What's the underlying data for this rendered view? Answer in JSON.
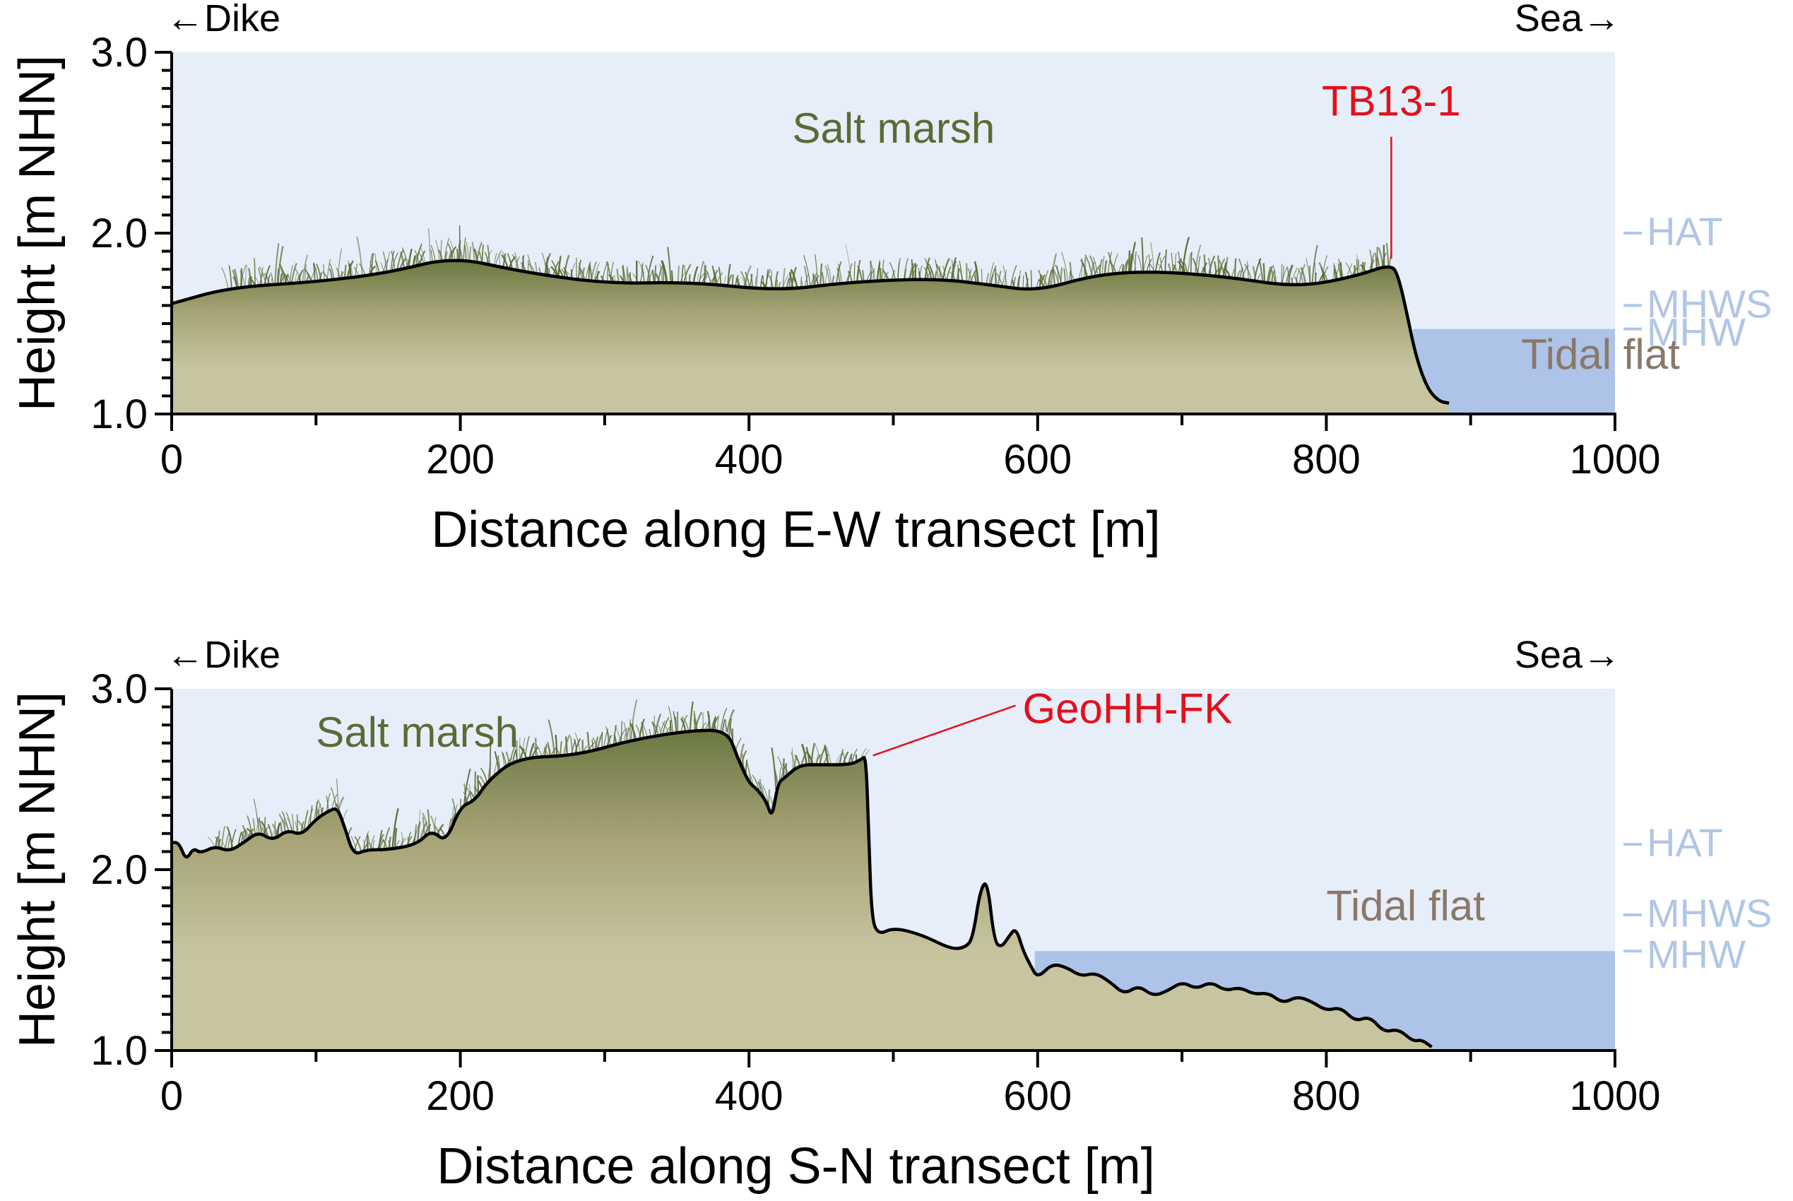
{
  "colors": {
    "sky": "#e6eef9",
    "water": "#adc3e8",
    "ground_top": "#6b7841",
    "ground_mid": "#a9a578",
    "ground_bottom": "#c7c4a0",
    "vegetation": "#5c6a30",
    "tide_label": "#b0c6e6",
    "core_label": "#e3101b",
    "tidal_flat_label": "#8a7868",
    "salt_marsh_label": "#5e6a35",
    "axis": "#000000"
  },
  "chart_data": [
    {
      "type": "area",
      "xlabel": "Distance along E-W transect [m]",
      "ylabel": "Height [m NHN]",
      "xlim": [
        0,
        1000
      ],
      "ylim": [
        1.0,
        3.0
      ],
      "xticks": [
        0,
        200,
        400,
        600,
        800,
        1000
      ],
      "xtick_labels": [
        "0",
        "200",
        "400",
        "600",
        "800",
        "1000"
      ],
      "yticks": [
        1.0,
        2.0,
        3.0
      ],
      "ytick_labels": [
        "1.0",
        "2.0",
        "3.0"
      ],
      "direction_left": "←Dike",
      "direction_right": "Sea→",
      "tide_levels": [
        {
          "name": "HAT",
          "value": 2.0
        },
        {
          "name": "MHWS",
          "value": 1.6
        },
        {
          "name": "MHW",
          "value": 1.47
        }
      ],
      "water_level": 1.47,
      "water_start_x": 860,
      "vegetation_range": [
        40,
        845
      ],
      "annotations": [
        {
          "text": "Salt marsh",
          "x": 430,
          "y": 2.5,
          "role": "salt-marsh"
        },
        {
          "text": "Tidal flat",
          "x": 935,
          "y": 1.25,
          "role": "tidal-flat"
        },
        {
          "text": "TB13-1",
          "x": 845,
          "y": 1.82,
          "label_y": 2.65,
          "role": "core"
        }
      ],
      "profile": {
        "x": [
          0,
          40,
          100,
          150,
          195,
          240,
          300,
          360,
          420,
          470,
          530,
          570,
          600,
          640,
          680,
          730,
          780,
          820,
          845,
          850,
          856,
          862,
          870,
          878,
          885
        ],
        "y": [
          1.61,
          1.7,
          1.73,
          1.78,
          1.87,
          1.79,
          1.72,
          1.73,
          1.68,
          1.73,
          1.75,
          1.71,
          1.68,
          1.77,
          1.79,
          1.76,
          1.7,
          1.76,
          1.83,
          1.76,
          1.55,
          1.32,
          1.14,
          1.07,
          1.06
        ]
      }
    },
    {
      "type": "area",
      "xlabel": "Distance along S-N transect [m]",
      "ylabel": "Height [m NHN]",
      "xlim": [
        0,
        1000
      ],
      "ylim": [
        1.0,
        3.0
      ],
      "xticks": [
        0,
        200,
        400,
        600,
        800,
        1000
      ],
      "xtick_labels": [
        "0",
        "200",
        "400",
        "600",
        "800",
        "1000"
      ],
      "yticks": [
        1.0,
        2.0,
        3.0
      ],
      "ytick_labels": [
        "1.0",
        "2.0",
        "3.0"
      ],
      "direction_left": "←Dike",
      "direction_right": "Sea→",
      "tide_levels": [
        {
          "name": "HAT",
          "value": 2.14
        },
        {
          "name": "MHWS",
          "value": 1.75
        },
        {
          "name": "MHW",
          "value": 1.55
        }
      ],
      "water_level": 1.55,
      "water_start_x": 598,
      "vegetation_range": [
        30,
        480
      ],
      "annotations": [
        {
          "text": "Salt marsh",
          "x": 100,
          "y": 2.68,
          "role": "salt-marsh"
        },
        {
          "text": "Tidal flat",
          "x": 800,
          "y": 1.72,
          "role": "tidal-flat"
        },
        {
          "text": "GeoHH-FK",
          "x": 482,
          "y": 2.6,
          "label_x": 570,
          "label_y": 2.81,
          "role": "core"
        }
      ],
      "profile": {
        "x": [
          0,
          5,
          10,
          15,
          20,
          30,
          40,
          50,
          60,
          70,
          80,
          90,
          100,
          110,
          115,
          120,
          126,
          135,
          150,
          170,
          180,
          190,
          200,
          210,
          220,
          240,
          280,
          320,
          360,
          385,
          392,
          400,
          405,
          412,
          416,
          420,
          425,
          435,
          450,
          470,
          478,
          481,
          483,
          485,
          490,
          500,
          520,
          540,
          550,
          555,
          560,
          565,
          570,
          575,
          580,
          585,
          590,
          595,
          600,
          610,
          620,
          630,
          640,
          650,
          660,
          670,
          680,
          690,
          700,
          710,
          720,
          730,
          740,
          750,
          760,
          770,
          780,
          790,
          800,
          810,
          820,
          830,
          840,
          850,
          860,
          866,
          873
        ],
        "y": [
          2.15,
          2.15,
          2.05,
          2.12,
          2.09,
          2.13,
          2.1,
          2.15,
          2.21,
          2.16,
          2.22,
          2.19,
          2.28,
          2.33,
          2.34,
          2.23,
          2.08,
          2.11,
          2.11,
          2.14,
          2.22,
          2.15,
          2.35,
          2.38,
          2.5,
          2.62,
          2.63,
          2.72,
          2.77,
          2.77,
          2.62,
          2.48,
          2.45,
          2.38,
          2.28,
          2.48,
          2.51,
          2.58,
          2.58,
          2.58,
          2.61,
          2.63,
          2.2,
          1.72,
          1.64,
          1.68,
          1.64,
          1.56,
          1.57,
          1.62,
          1.88,
          1.95,
          1.6,
          1.57,
          1.63,
          1.68,
          1.55,
          1.47,
          1.4,
          1.48,
          1.46,
          1.41,
          1.43,
          1.38,
          1.31,
          1.36,
          1.3,
          1.33,
          1.38,
          1.34,
          1.38,
          1.33,
          1.35,
          1.31,
          1.32,
          1.26,
          1.3,
          1.27,
          1.22,
          1.24,
          1.16,
          1.19,
          1.1,
          1.12,
          1.05,
          1.06,
          1.02
        ]
      }
    }
  ]
}
